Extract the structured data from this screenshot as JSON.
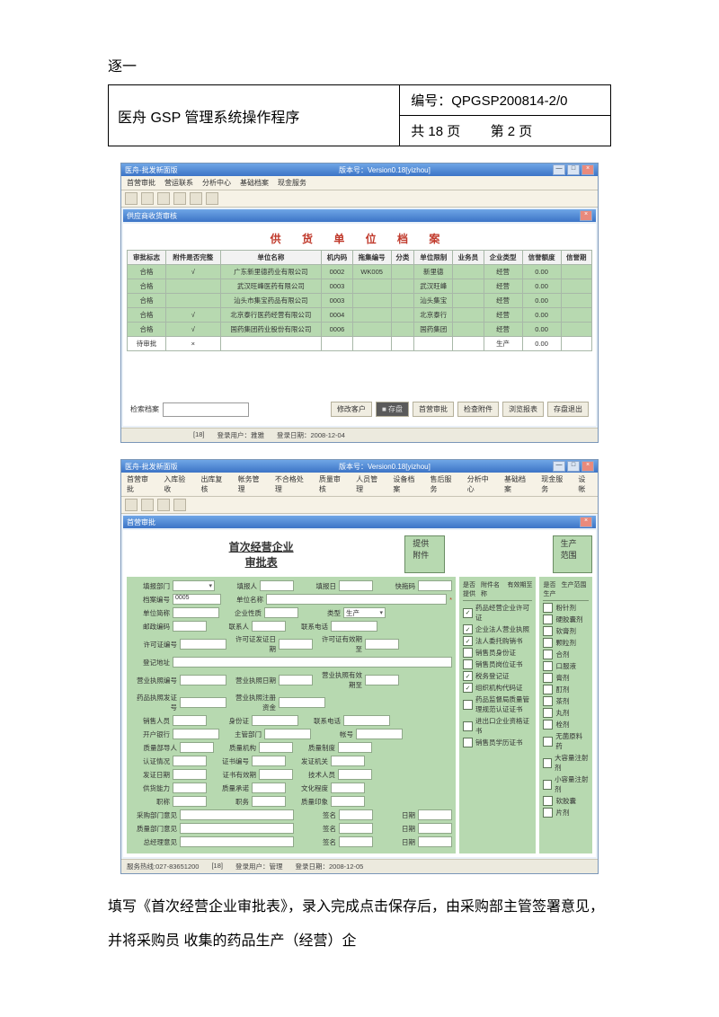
{
  "top_line": "逐一",
  "header": {
    "title": "医舟 GSP 管理系统操作程序",
    "code_label": "编号：",
    "code": "QPGSP200814-2/0",
    "page_total_label": "共 18 页",
    "page_cur_label": "第 2 页"
  },
  "shot1": {
    "title_left": "医舟-批发新面版",
    "title_center": "版本号：Version0.18[yizhou]",
    "menus": [
      "首营审批",
      "营运联系",
      "分析中心",
      "基础档案",
      "现金服务"
    ],
    "panel_title": "供应商收货审核",
    "big_title": "供 货 单 位 档 案",
    "columns": [
      "审批标志",
      "附件是否完整",
      "单位名称",
      "机内码",
      "拖集编号",
      "分类",
      "单位限制",
      "业务员",
      "企业类型",
      "信誉额度",
      "信誉期"
    ],
    "rows": [
      {
        "status": "合格",
        "ok": "√",
        "name": "广东新里德药业有限公司",
        "code": "0002",
        "wk": "WK005",
        "cat": "",
        "limit": "新里德",
        "emp": "",
        "type": "经营",
        "credit": "0.00",
        "class": "green"
      },
      {
        "status": "合格",
        "ok": "",
        "name": "武汉旺峰医药有限公司",
        "code": "0003",
        "wk": "",
        "cat": "",
        "limit": "武汉旺峰",
        "emp": "",
        "type": "经营",
        "credit": "0.00",
        "class": "green"
      },
      {
        "status": "合格",
        "ok": "",
        "name": "汕头市集宝药品有限公司",
        "code": "0003",
        "wk": "",
        "cat": "",
        "limit": "汕头集宝",
        "emp": "",
        "type": "经营",
        "credit": "0.00",
        "class": "green"
      },
      {
        "status": "合格",
        "ok": "√",
        "name": "北京泰行医药经营有限公司",
        "code": "0004",
        "wk": "",
        "cat": "",
        "limit": "北京泰行",
        "emp": "",
        "type": "经营",
        "credit": "0.00",
        "class": "green"
      },
      {
        "status": "合格",
        "ok": "√",
        "name": "国药集团药业股份有限公司",
        "code": "0006",
        "wk": "",
        "cat": "",
        "limit": "国药集团",
        "emp": "",
        "type": "经营",
        "credit": "0.00",
        "class": "green"
      },
      {
        "status": "待审批",
        "ok": "×",
        "name": "",
        "code": "",
        "wk": "",
        "cat": "",
        "limit": "",
        "emp": "",
        "type": "生产",
        "credit": "0.00",
        "class": "white"
      }
    ],
    "search_label": "检索档案",
    "buttons": [
      "修改客户",
      "存盘",
      "首营审批",
      "检查附件",
      "浏览报表",
      "存盘退出"
    ],
    "status": {
      "count": "[18]",
      "user_label": "登录用户：雅雅",
      "date_label": "登录日期：2008-12-04"
    }
  },
  "shot2": {
    "title_left": "医舟-批发新面版",
    "title_center": "版本号：Version0.18[yizhou]",
    "menus": [
      "首营审批",
      "入库验收",
      "出库复核",
      "帐务管理",
      "不合格处理",
      "质量审核",
      "人员管理",
      "设备档案",
      "售后服务",
      "分析中心",
      "基础档案",
      "现金服务",
      "设帐"
    ],
    "panel_title": "首营审批",
    "form_title": "首次经营企业审批表",
    "attach_label": "提供附件",
    "scope_label": "生产范围",
    "left_rows": [
      [
        {
          "l": "填报部门",
          "t": "sel"
        },
        {
          "l": "填报人",
          "t": "fld sm"
        },
        {
          "l": "填报日",
          "t": "fld sm"
        },
        {
          "l": "快拖码",
          "t": "fld sm"
        }
      ],
      [
        {
          "l": "档案编号",
          "t": "fld md",
          "v": "0005"
        },
        {
          "l": "单位名称",
          "t": "fld",
          "req": "*"
        }
      ],
      [
        {
          "l": "单位简称",
          "t": "fld md"
        },
        {
          "l": "企业性质",
          "t": "fld sm"
        },
        {
          "l": "类型",
          "t": "sel",
          "v": "生产"
        }
      ],
      [
        {
          "l": "邮政编码",
          "t": "fld sm"
        },
        {
          "l": "联系人",
          "t": "fld sm"
        },
        {
          "l": "联系电话",
          "t": "fld md"
        }
      ],
      [
        {
          "l": "许可证编号",
          "t": "fld md"
        },
        {
          "l": "许可证发证日期",
          "t": "fld sm"
        },
        {
          "l": "许可证有效期至",
          "t": "fld sm"
        }
      ],
      [
        {
          "l": "登记地址",
          "t": "fld"
        }
      ],
      [
        {
          "l": "营业执照编号",
          "t": "fld md"
        },
        {
          "l": "营业执照日期",
          "t": "fld sm"
        },
        {
          "l": "营业执照有效期至",
          "t": "fld sm"
        }
      ],
      [
        {
          "l": "药品执照发证号",
          "t": "fld md"
        },
        {
          "l": "营业执照注册资金",
          "t": "fld md"
        }
      ],
      [
        {
          "l": "销售人员",
          "t": "fld sm"
        },
        {
          "l": "身份证",
          "t": "fld md"
        },
        {
          "l": "联系电话",
          "t": "fld md"
        }
      ],
      [
        {
          "l": "开户银行",
          "t": "fld md"
        },
        {
          "l": "主管部门",
          "t": "fld md"
        },
        {
          "l": "帐号",
          "t": "fld md"
        }
      ],
      [
        {
          "l": "质量部导人",
          "t": "fld sm"
        },
        {
          "l": "质量机构",
          "t": "fld sm"
        },
        {
          "l": "质量制度",
          "t": "fld sm"
        }
      ],
      [
        {
          "l": "认证情况",
          "t": "fld sm"
        },
        {
          "l": "证书编号",
          "t": "fld sm"
        },
        {
          "l": "发证机关",
          "t": "fld sm"
        }
      ],
      [
        {
          "l": "发证日期",
          "t": "fld sm"
        },
        {
          "l": "证书有效期",
          "t": "fld sm"
        },
        {
          "l": "技术人员",
          "t": "fld sm"
        }
      ],
      [
        {
          "l": "供货能力",
          "t": "fld sm"
        },
        {
          "l": "质量承诺",
          "t": "fld sm"
        },
        {
          "l": "文化程度",
          "t": "fld sm"
        }
      ],
      [
        {
          "l": "职称",
          "t": "fld sm"
        },
        {
          "l": "职务",
          "t": "fld sm"
        },
        {
          "l": "质量印象",
          "t": "fld sm"
        }
      ],
      [
        {
          "l": "采购部门意见",
          "t": "fld"
        },
        {
          "l": "签名",
          "t": "fld sm"
        },
        {
          "l": "日期",
          "t": "fld sm"
        }
      ],
      [
        {
          "l": "质量部门意见",
          "t": "fld"
        },
        {
          "l": "签名",
          "t": "fld sm"
        },
        {
          "l": "日期",
          "t": "fld sm"
        }
      ],
      [
        {
          "l": "总经理意见",
          "t": "fld"
        },
        {
          "l": "签名",
          "t": "fld sm"
        },
        {
          "l": "日期",
          "t": "fld sm"
        }
      ]
    ],
    "mid_head": [
      "是否提供",
      "附件名称",
      "有效期至"
    ],
    "attachments": [
      {
        "c": true,
        "n": "药品经营企业许可证"
      },
      {
        "c": true,
        "n": "企业法人营业执照"
      },
      {
        "c": true,
        "n": "法人委托购销书"
      },
      {
        "c": false,
        "n": "销售员身份证"
      },
      {
        "c": false,
        "n": "销售员岗位证书"
      },
      {
        "c": true,
        "n": "税务登记证"
      },
      {
        "c": true,
        "n": "组织机构代码证"
      },
      {
        "c": false,
        "n": "药品监督局质量管理规范认证证书"
      },
      {
        "c": false,
        "n": "进出口企业资格证书"
      },
      {
        "c": false,
        "n": "销售员学历证书"
      }
    ],
    "right_head": [
      "是否生产",
      "生产范围"
    ],
    "scopes": [
      "粉针剂",
      "硬胶囊剂",
      "软膏剂",
      "颗粒剂",
      "合剂",
      "口服液",
      "膏剂",
      "酊剂",
      "茶剂",
      "丸剂",
      "栓剂",
      "无菌原料药",
      "大容量注射剂",
      "小容量注射剂",
      "软胶囊",
      "片剂"
    ],
    "status": {
      "svc": "服务热线:027-83651200",
      "count": "[18]",
      "user_label": "登录用户：管理",
      "date_label": "登录日期：2008-12-05"
    }
  },
  "body_text": "填写《首次经营企业审批表》，录入完成点击保存后，由采购部主管签署意见，并将采购员 收集的药品生产（经营）企"
}
